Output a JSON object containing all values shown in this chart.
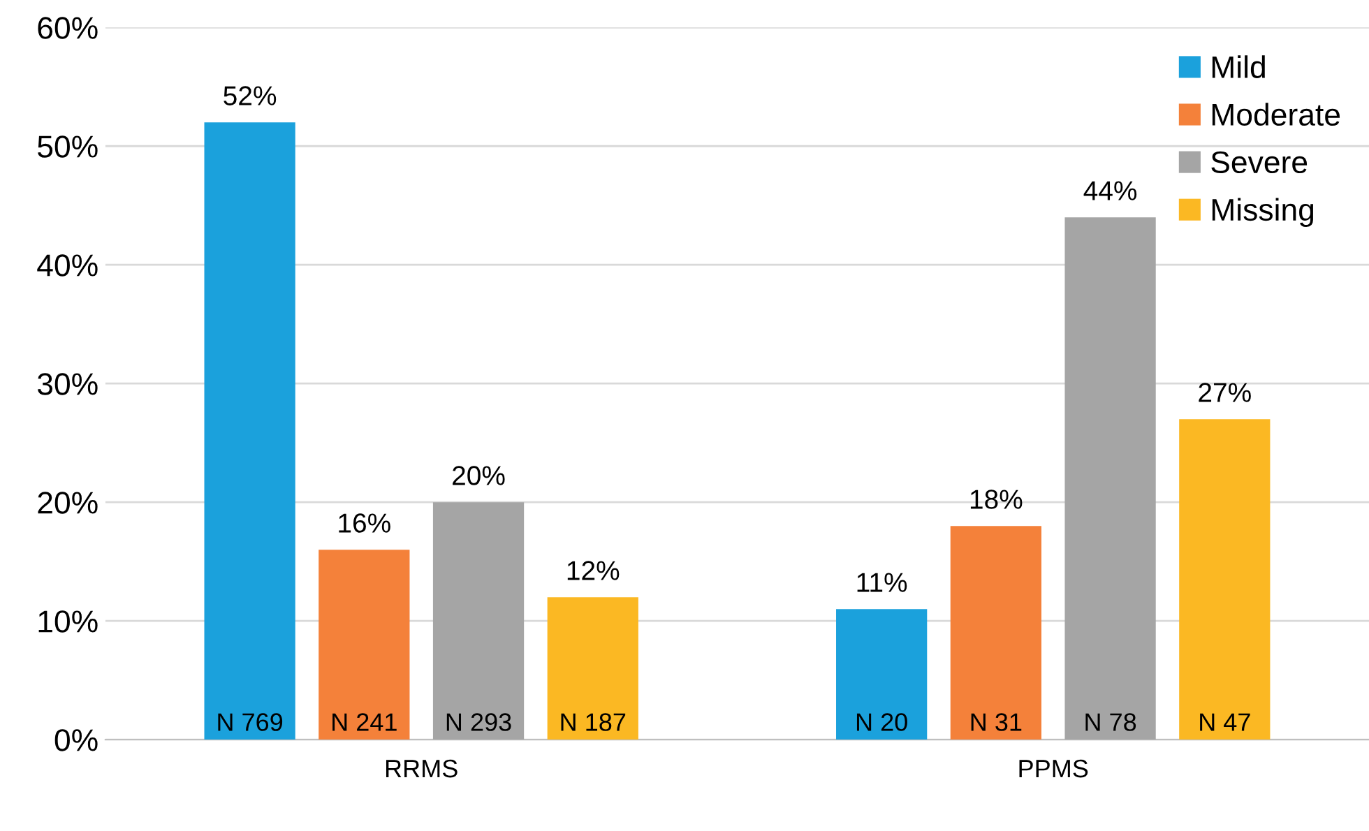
{
  "chart_data": {
    "type": "bar",
    "categories": [
      "RRMS",
      "PPMS"
    ],
    "series": [
      {
        "name": "Mild",
        "color": "#1ba1dc",
        "values": [
          52,
          11
        ],
        "value_labels": [
          "52%",
          "11%"
        ]
      },
      {
        "name": "Moderate",
        "color": "#f4813a",
        "values": [
          16,
          18
        ],
        "value_labels": [
          "16%",
          "18%"
        ]
      },
      {
        "name": "Severe",
        "color": "#a5a5a5",
        "values": [
          20,
          44
        ],
        "value_labels": [
          "20%",
          "44%"
        ]
      },
      {
        "name": "Missing",
        "color": "#fbb823",
        "values": [
          12,
          27
        ],
        "value_labels": [
          "12%",
          "27%"
        ]
      }
    ],
    "ylim": [
      0,
      60
    ],
    "yticks": [
      {
        "value": 0,
        "label": "0%"
      },
      {
        "value": 10,
        "label": "10%"
      },
      {
        "value": 20,
        "label": "20%"
      },
      {
        "value": 30,
        "label": "30%"
      },
      {
        "value": 40,
        "label": "40%"
      },
      {
        "value": 50,
        "label": "50%"
      },
      {
        "value": 60,
        "label": "60%"
      }
    ],
    "grid": "y",
    "legend": "top right",
    "annotations": [
      "N 769",
      "N 241",
      "N 293",
      "N 187",
      "N 20",
      "N 31",
      "N 78",
      "N 47"
    ]
  }
}
